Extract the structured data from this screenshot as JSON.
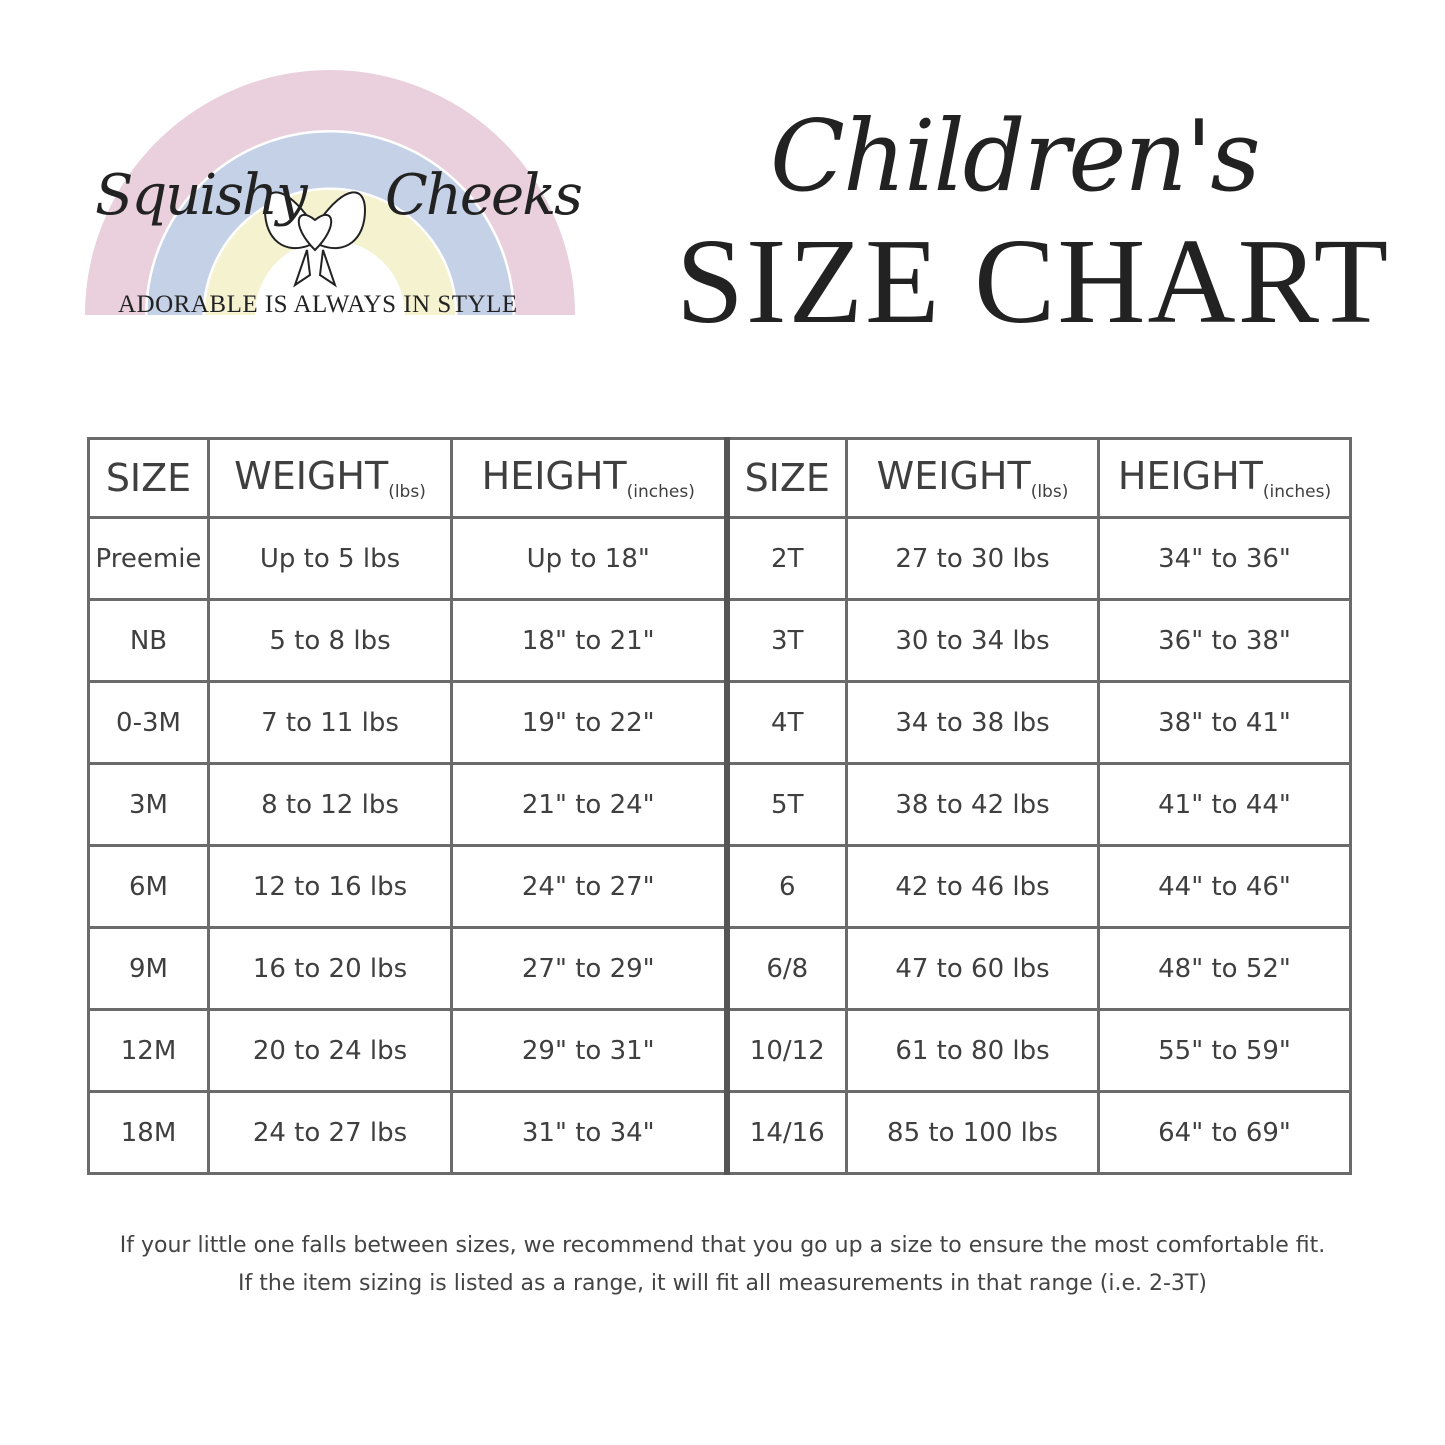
{
  "logo": {
    "brand_left": "Squishy",
    "brand_right": "Cheeks",
    "tagline": "ADORABLE IS ALWAYS IN STYLE",
    "colors": {
      "rainbow_outer": "#e3c4d3",
      "rainbow_middle": "#b7c6e0",
      "rainbow_inner": "#f3efc4"
    }
  },
  "title": {
    "script": "Children's",
    "main": "SIZE CHART"
  },
  "table": {
    "headers": [
      {
        "label": "SIZE",
        "unit": ""
      },
      {
        "label": "WEIGHT",
        "unit": "(lbs)"
      },
      {
        "label": "HEIGHT",
        "unit": "(inches)"
      },
      {
        "label": "SIZE",
        "unit": ""
      },
      {
        "label": "WEIGHT",
        "unit": "(lbs)"
      },
      {
        "label": "HEIGHT",
        "unit": "(inches)"
      }
    ],
    "rows": [
      [
        "Preemie",
        "Up to 5 lbs",
        "Up to 18\"",
        "2T",
        "27 to 30 lbs",
        "34\" to 36\""
      ],
      [
        "NB",
        "5 to 8 lbs",
        "18\" to 21\"",
        "3T",
        "30 to 34 lbs",
        "36\" to 38\""
      ],
      [
        "0-3M",
        "7 to 11 lbs",
        "19\" to 22\"",
        "4T",
        "34 to 38 lbs",
        "38\" to 41\""
      ],
      [
        "3M",
        "8 to 12 lbs",
        "21\" to 24\"",
        "5T",
        "38 to 42 lbs",
        "41\" to 44\""
      ],
      [
        "6M",
        "12 to 16 lbs",
        "24\" to 27\"",
        "6",
        "42 to 46 lbs",
        "44\" to 46\""
      ],
      [
        "9M",
        "16 to 20 lbs",
        "27\" to 29\"",
        "6/8",
        "47 to 60 lbs",
        "48\" to 52\""
      ],
      [
        "12M",
        "20 to 24 lbs",
        "29\" to 31\"",
        "10/12",
        "61 to 80 lbs",
        "55\" to 59\""
      ],
      [
        "18M",
        "24 to 27 lbs",
        "31\" to 34\"",
        "14/16",
        "85 to 100 lbs",
        "64\" to 69\""
      ]
    ]
  },
  "footer": {
    "line1": "If your little one falls between sizes, we recommend that you go up a size to ensure the most comfortable fit.",
    "line2": "If the item sizing is listed as a range, it will fit all measurements in that range (i.e. 2-3T)"
  }
}
